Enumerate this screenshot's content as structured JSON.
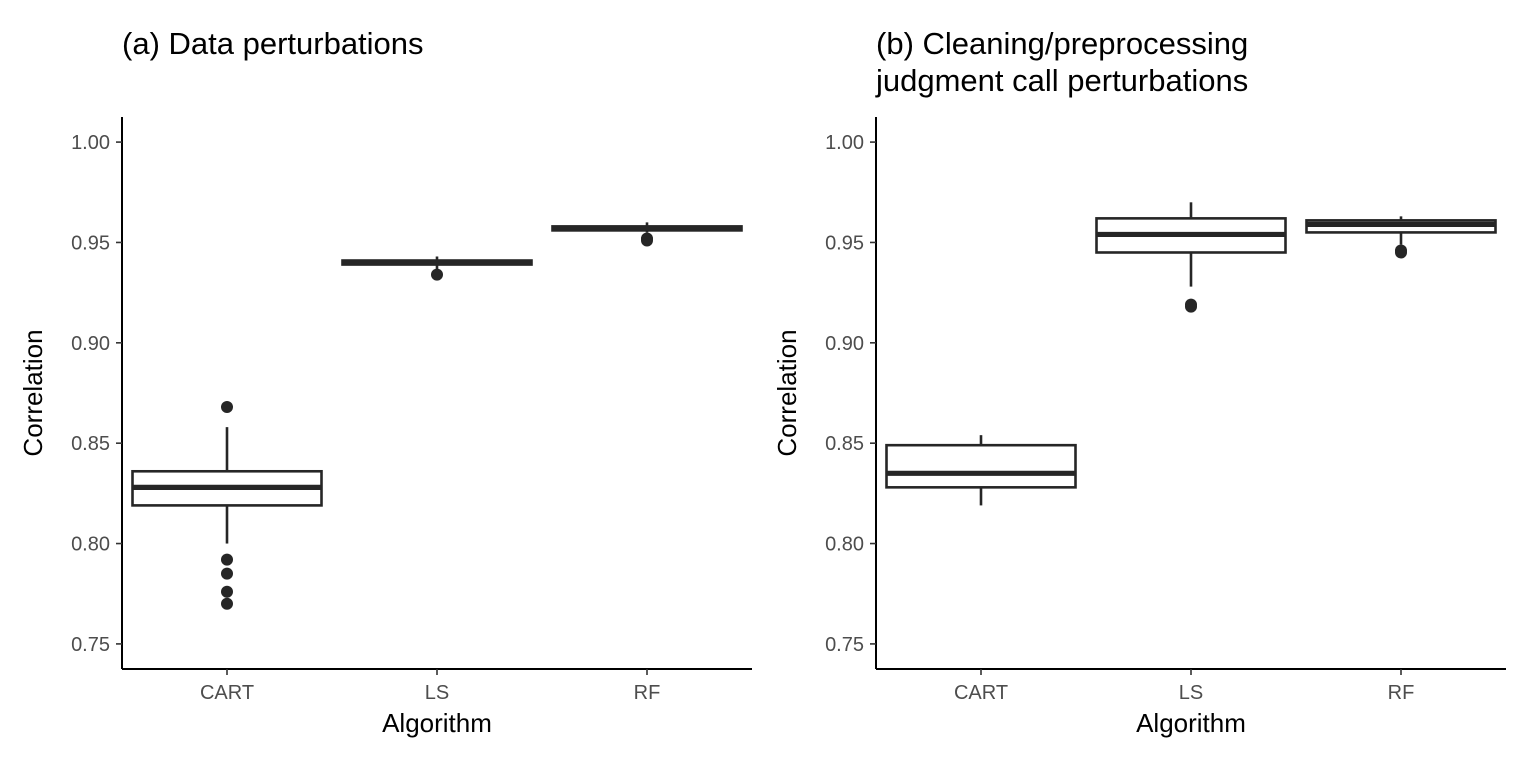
{
  "chart_data": [
    {
      "type": "boxplot",
      "title_lines": [
        "(a) Data perturbations"
      ],
      "xlabel": "Algorithm",
      "ylabel": "Correlation",
      "ylim": [
        0.7375,
        1.0125
      ],
      "yticks": [
        0.75,
        0.8,
        0.85,
        0.9,
        0.95,
        1.0
      ],
      "ytick_labels": [
        "0.75",
        "0.80",
        "0.85",
        "0.90",
        "0.95",
        "1.00"
      ],
      "categories": [
        "CART",
        "LS",
        "RF"
      ],
      "boxes": [
        {
          "category": "CART",
          "q1": 0.819,
          "median": 0.828,
          "q3": 0.836,
          "whisker_low": 0.8,
          "whisker_high": 0.858,
          "outliers": [
            0.868,
            0.792,
            0.785,
            0.776,
            0.77
          ]
        },
        {
          "category": "LS",
          "q1": 0.939,
          "median": 0.94,
          "q3": 0.941,
          "whisker_low": 0.936,
          "whisker_high": 0.943,
          "outliers": [
            0.934
          ]
        },
        {
          "category": "RF",
          "q1": 0.956,
          "median": 0.957,
          "q3": 0.958,
          "whisker_low": 0.955,
          "whisker_high": 0.96,
          "outliers": [
            0.952,
            0.951
          ]
        }
      ]
    },
    {
      "type": "boxplot",
      "title_lines": [
        "(b) Cleaning/preprocessing",
        "judgment call perturbations"
      ],
      "xlabel": "Algorithm",
      "ylabel": "Correlation",
      "ylim": [
        0.7375,
        1.0125
      ],
      "yticks": [
        0.75,
        0.8,
        0.85,
        0.9,
        0.95,
        1.0
      ],
      "ytick_labels": [
        "0.75",
        "0.80",
        "0.85",
        "0.90",
        "0.95",
        "1.00"
      ],
      "categories": [
        "CART",
        "LS",
        "RF"
      ],
      "boxes": [
        {
          "category": "CART",
          "q1": 0.828,
          "median": 0.835,
          "q3": 0.849,
          "whisker_low": 0.819,
          "whisker_high": 0.854,
          "outliers": []
        },
        {
          "category": "LS",
          "q1": 0.945,
          "median": 0.954,
          "q3": 0.962,
          "whisker_low": 0.928,
          "whisker_high": 0.97,
          "outliers": [
            0.919,
            0.918
          ]
        },
        {
          "category": "RF",
          "q1": 0.955,
          "median": 0.959,
          "q3": 0.961,
          "whisker_low": 0.949,
          "whisker_high": 0.963,
          "outliers": [
            0.946,
            0.945
          ]
        }
      ]
    }
  ]
}
